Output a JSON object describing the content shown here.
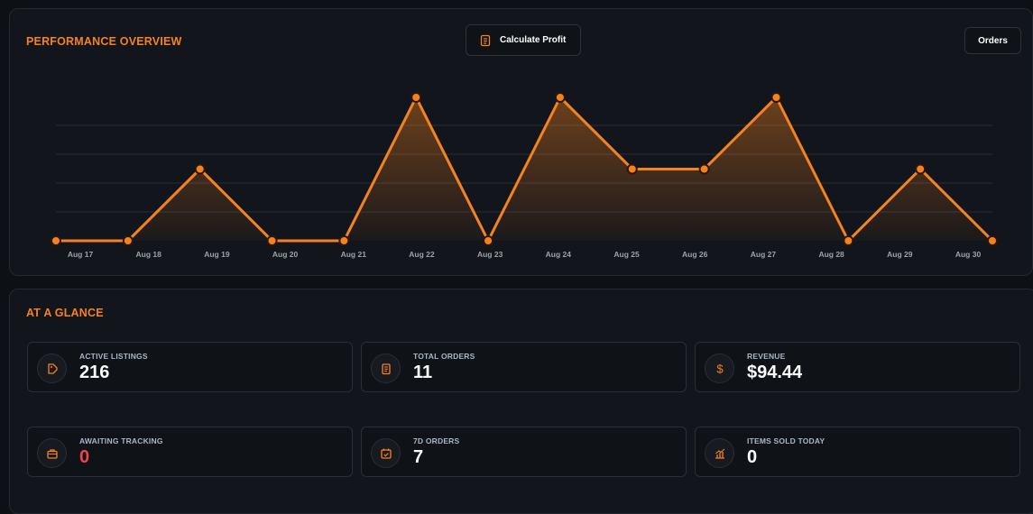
{
  "colors": {
    "accent": "#f5821f",
    "danger": "#ef4444",
    "grid": "#2b2f36",
    "tick": "#9aa3ad"
  },
  "performance": {
    "title": "PERFORMANCE OVERVIEW",
    "calc_button": {
      "label": "Calculate Profit",
      "icon": "clipboard-icon"
    },
    "orders_button": {
      "label": "Orders"
    }
  },
  "chart_data": {
    "type": "area",
    "x": [
      "Aug 17",
      "Aug 18",
      "Aug 19",
      "Aug 20",
      "Aug 21",
      "Aug 22",
      "Aug 23",
      "Aug 24",
      "Aug 25",
      "Aug 26",
      "Aug 27",
      "Aug 28",
      "Aug 29",
      "Aug 30"
    ],
    "series": [
      {
        "values": [
          0,
          0,
          1,
          0,
          0,
          2,
          0,
          2,
          1,
          1,
          2,
          0,
          1,
          0
        ]
      }
    ],
    "ylim": [
      0,
      2
    ],
    "grid": true,
    "legend": "none"
  },
  "glance": {
    "title": "AT A GLANCE",
    "cards": [
      {
        "label": "ACTIVE LISTINGS",
        "value": "216",
        "icon": "tag-icon"
      },
      {
        "label": "TOTAL ORDERS",
        "value": "11",
        "icon": "clipboard-icon"
      },
      {
        "label": "REVENUE",
        "value": "$94.44",
        "icon": "dollar-icon"
      },
      {
        "label": "AWAITING TRACKING",
        "value": "0",
        "icon": "briefcase-icon",
        "value_color": "#ef4444"
      },
      {
        "label": "7D ORDERS",
        "value": "7",
        "icon": "calendar-check-icon"
      },
      {
        "label": "ITEMS SOLD TODAY",
        "value": "0",
        "icon": "chart-growth-icon"
      }
    ]
  }
}
